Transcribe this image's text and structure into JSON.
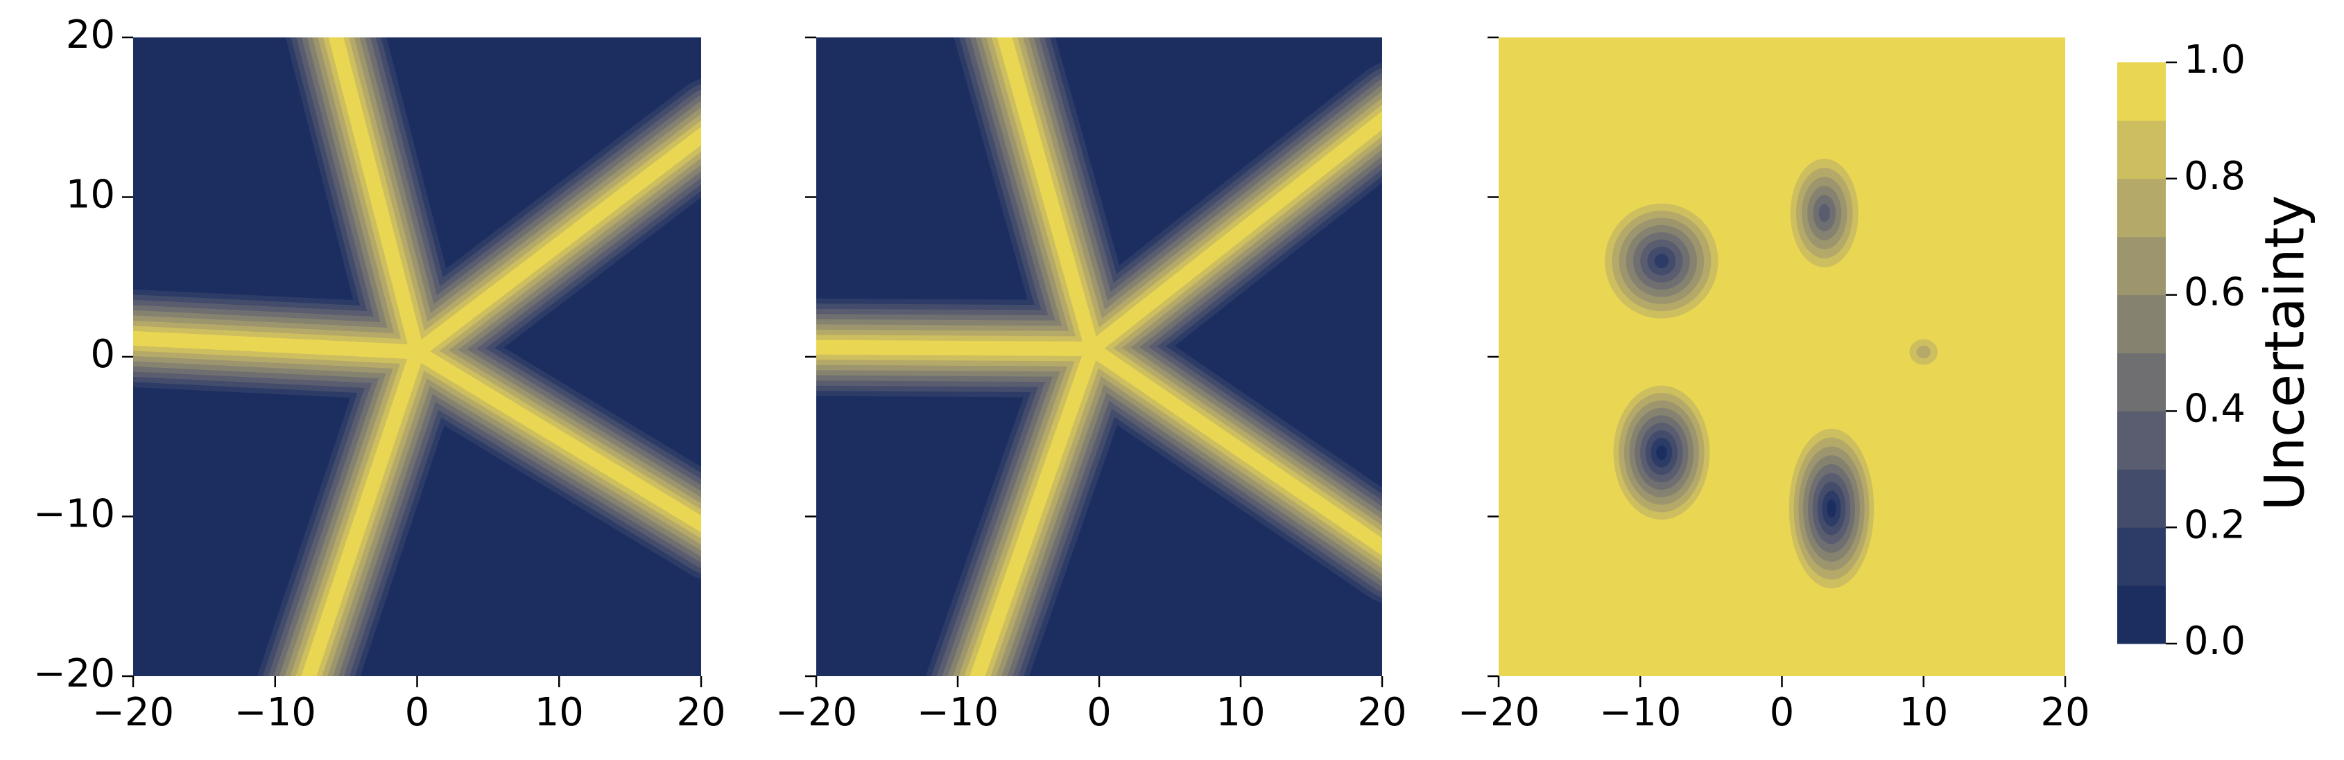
{
  "chart_data": [
    {
      "type": "contour",
      "xlim": [
        -20,
        20
      ],
      "ylim": [
        -20,
        20
      ],
      "xticks": [
        {
          "value": -20,
          "label": "−20"
        },
        {
          "value": -10,
          "label": "−10"
        },
        0,
        10,
        20
      ],
      "yticks": [
        {
          "value": -20,
          "label": "−20"
        },
        {
          "value": -10,
          "label": "−10"
        },
        0,
        10,
        20
      ]
    },
    {
      "type": "contour",
      "xlim": [
        -20,
        20
      ],
      "ylim": [
        -20,
        20
      ],
      "xticks": [
        {
          "value": -20,
          "label": "−20"
        },
        {
          "value": -10,
          "label": "−10"
        },
        0,
        10,
        20
      ],
      "yticks": [
        -20,
        -10,
        0,
        10,
        20
      ]
    },
    {
      "type": "contour",
      "xlim": [
        -20,
        20
      ],
      "ylim": [
        -20,
        20
      ],
      "xticks": [
        {
          "value": -20,
          "label": "−20"
        },
        {
          "value": -10,
          "label": "−10"
        },
        0,
        10,
        20
      ],
      "yticks": [
        -20,
        -10,
        0,
        10,
        20
      ]
    },
    {
      "type": "colorbar",
      "label": "Uncertainty",
      "levels": [
        0,
        0.1,
        0.2,
        0.3,
        0.4,
        0.5,
        0.6,
        0.7,
        0.8,
        0.9,
        1.0
      ],
      "colors": [
        "#1c2e5f",
        "#2d3b67",
        "#444c6b",
        "#5a5d6f",
        "#6f6f71",
        "#858270",
        "#9c956e",
        "#b4a968",
        "#cdbe5f",
        "#e9d753"
      ],
      "ticks": [
        {
          "value": 0,
          "label": "0.0"
        },
        {
          "value": 0.2,
          "label": "0.2"
        },
        {
          "value": 0.4,
          "label": "0.4"
        },
        {
          "value": 0.6,
          "label": "0.6"
        },
        {
          "value": 0.8,
          "label": "0.8"
        },
        {
          "value": 1.0,
          "label": "1.0"
        }
      ]
    }
  ]
}
